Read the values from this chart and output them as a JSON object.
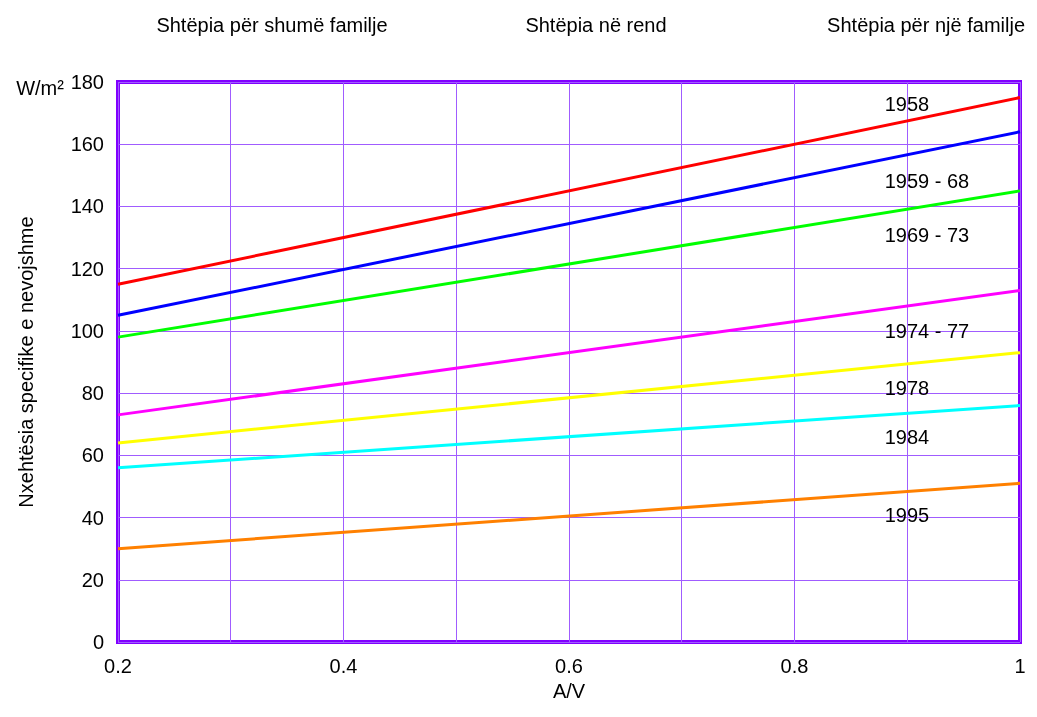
{
  "chart_data": {
    "type": "line",
    "xlabel": "A/V",
    "ylabel": "Nxehtësia specifike e nevojshme",
    "annotations": [
      "Shtëpia për shumë familje",
      "Shtëpia në rend",
      "Shtëpia për një familje",
      "W/m²"
    ],
    "x": [
      0.2,
      1.0
    ],
    "series": [
      {
        "name": "1958",
        "color": "#ff0000",
        "values": [
          115,
          175
        ]
      },
      {
        "name": "1959 - 68",
        "color": "#0000ff",
        "values": [
          105,
          164
        ]
      },
      {
        "name": "1969 - 73",
        "color": "#00ff00",
        "values": [
          98,
          145
        ]
      },
      {
        "name": "1974 - 77",
        "color": "#ff00ff",
        "values": [
          73,
          113
        ]
      },
      {
        "name": "1978",
        "color": "#ffff00",
        "values": [
          64,
          93
        ]
      },
      {
        "name": "1984",
        "color": "#00ffff",
        "values": [
          56,
          76
        ]
      },
      {
        "name": "1995",
        "color": "#ff8000",
        "values": [
          30,
          51
        ]
      }
    ],
    "xlim": [
      0.2,
      1.0
    ],
    "ylim": [
      0,
      180
    ],
    "xticks": [
      0.2,
      {
        "value": 0.3,
        "label": null
      },
      0.4,
      {
        "value": 0.5,
        "label": null
      },
      0.6,
      {
        "value": 0.7,
        "label": null
      },
      0.8,
      {
        "value": 0.9,
        "label": null
      },
      1.0
    ],
    "yticks": [
      0,
      20,
      40,
      60,
      80,
      100,
      120,
      140,
      160,
      180
    ],
    "grid": true,
    "legend": false,
    "marker": "none",
    "line_style": "solid"
  }
}
